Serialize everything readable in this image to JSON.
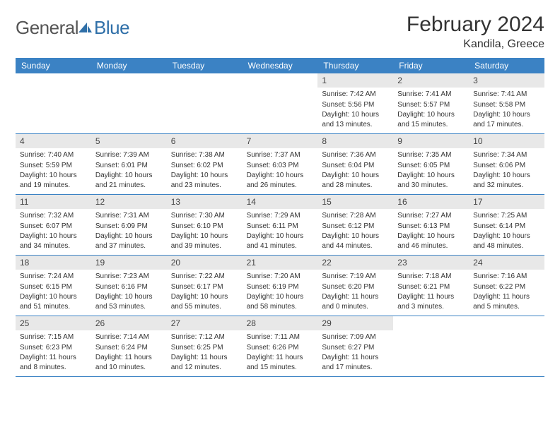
{
  "logo": {
    "text1": "General",
    "text2": "Blue"
  },
  "title": "February 2024",
  "location": "Kandila, Greece",
  "colors": {
    "header_bg": "#3b82c4",
    "header_text": "#ffffff",
    "daynum_bg": "#e8e8e8",
    "border": "#3b82c4",
    "logo_gray": "#555555",
    "logo_blue": "#2f6fa8"
  },
  "dayHeaders": [
    "Sunday",
    "Monday",
    "Tuesday",
    "Wednesday",
    "Thursday",
    "Friday",
    "Saturday"
  ],
  "leadingEmpty": 4,
  "days": [
    {
      "n": 1,
      "sunrise": "7:42 AM",
      "sunset": "5:56 PM",
      "daylight": "10 hours and 13 minutes."
    },
    {
      "n": 2,
      "sunrise": "7:41 AM",
      "sunset": "5:57 PM",
      "daylight": "10 hours and 15 minutes."
    },
    {
      "n": 3,
      "sunrise": "7:41 AM",
      "sunset": "5:58 PM",
      "daylight": "10 hours and 17 minutes."
    },
    {
      "n": 4,
      "sunrise": "7:40 AM",
      "sunset": "5:59 PM",
      "daylight": "10 hours and 19 minutes."
    },
    {
      "n": 5,
      "sunrise": "7:39 AM",
      "sunset": "6:01 PM",
      "daylight": "10 hours and 21 minutes."
    },
    {
      "n": 6,
      "sunrise": "7:38 AM",
      "sunset": "6:02 PM",
      "daylight": "10 hours and 23 minutes."
    },
    {
      "n": 7,
      "sunrise": "7:37 AM",
      "sunset": "6:03 PM",
      "daylight": "10 hours and 26 minutes."
    },
    {
      "n": 8,
      "sunrise": "7:36 AM",
      "sunset": "6:04 PM",
      "daylight": "10 hours and 28 minutes."
    },
    {
      "n": 9,
      "sunrise": "7:35 AM",
      "sunset": "6:05 PM",
      "daylight": "10 hours and 30 minutes."
    },
    {
      "n": 10,
      "sunrise": "7:34 AM",
      "sunset": "6:06 PM",
      "daylight": "10 hours and 32 minutes."
    },
    {
      "n": 11,
      "sunrise": "7:32 AM",
      "sunset": "6:07 PM",
      "daylight": "10 hours and 34 minutes."
    },
    {
      "n": 12,
      "sunrise": "7:31 AM",
      "sunset": "6:09 PM",
      "daylight": "10 hours and 37 minutes."
    },
    {
      "n": 13,
      "sunrise": "7:30 AM",
      "sunset": "6:10 PM",
      "daylight": "10 hours and 39 minutes."
    },
    {
      "n": 14,
      "sunrise": "7:29 AM",
      "sunset": "6:11 PM",
      "daylight": "10 hours and 41 minutes."
    },
    {
      "n": 15,
      "sunrise": "7:28 AM",
      "sunset": "6:12 PM",
      "daylight": "10 hours and 44 minutes."
    },
    {
      "n": 16,
      "sunrise": "7:27 AM",
      "sunset": "6:13 PM",
      "daylight": "10 hours and 46 minutes."
    },
    {
      "n": 17,
      "sunrise": "7:25 AM",
      "sunset": "6:14 PM",
      "daylight": "10 hours and 48 minutes."
    },
    {
      "n": 18,
      "sunrise": "7:24 AM",
      "sunset": "6:15 PM",
      "daylight": "10 hours and 51 minutes."
    },
    {
      "n": 19,
      "sunrise": "7:23 AM",
      "sunset": "6:16 PM",
      "daylight": "10 hours and 53 minutes."
    },
    {
      "n": 20,
      "sunrise": "7:22 AM",
      "sunset": "6:17 PM",
      "daylight": "10 hours and 55 minutes."
    },
    {
      "n": 21,
      "sunrise": "7:20 AM",
      "sunset": "6:19 PM",
      "daylight": "10 hours and 58 minutes."
    },
    {
      "n": 22,
      "sunrise": "7:19 AM",
      "sunset": "6:20 PM",
      "daylight": "11 hours and 0 minutes."
    },
    {
      "n": 23,
      "sunrise": "7:18 AM",
      "sunset": "6:21 PM",
      "daylight": "11 hours and 3 minutes."
    },
    {
      "n": 24,
      "sunrise": "7:16 AM",
      "sunset": "6:22 PM",
      "daylight": "11 hours and 5 minutes."
    },
    {
      "n": 25,
      "sunrise": "7:15 AM",
      "sunset": "6:23 PM",
      "daylight": "11 hours and 8 minutes."
    },
    {
      "n": 26,
      "sunrise": "7:14 AM",
      "sunset": "6:24 PM",
      "daylight": "11 hours and 10 minutes."
    },
    {
      "n": 27,
      "sunrise": "7:12 AM",
      "sunset": "6:25 PM",
      "daylight": "11 hours and 12 minutes."
    },
    {
      "n": 28,
      "sunrise": "7:11 AM",
      "sunset": "6:26 PM",
      "daylight": "11 hours and 15 minutes."
    },
    {
      "n": 29,
      "sunrise": "7:09 AM",
      "sunset": "6:27 PM",
      "daylight": "11 hours and 17 minutes."
    }
  ],
  "labels": {
    "sunrise": "Sunrise:",
    "sunset": "Sunset:",
    "daylight": "Daylight:"
  }
}
